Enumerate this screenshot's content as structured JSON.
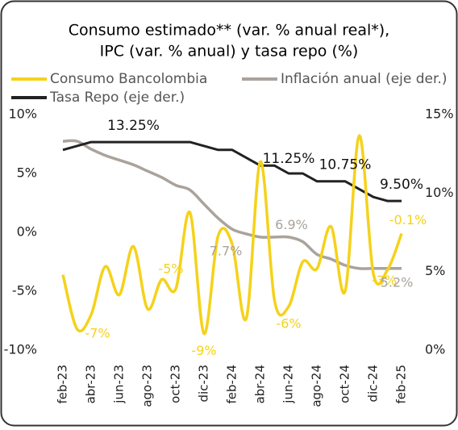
{
  "chart_data": {
    "type": "line",
    "title_lines": [
      "Consumo estimado** (var. % anual real*),",
      "IPC (var. % anual) y tasa repo (%)"
    ],
    "categories": [
      "feb-23",
      null,
      "abr-23",
      null,
      "jun-23",
      null,
      "ago-23",
      null,
      "oct-23",
      null,
      "dic-23",
      null,
      "feb-24",
      null,
      "abr-24",
      null,
      "jun-24",
      null,
      "ago-24",
      null,
      "oct-24",
      null,
      "dic-24",
      null,
      "feb-25"
    ],
    "series": [
      {
        "name": "Consumo Bancolombia",
        "color": "#f5d21a",
        "axis": "y",
        "values": [
          -3.6,
          -8.2,
          -7.0,
          -2.9,
          -5.3,
          -1.2,
          -6.5,
          -4.0,
          -4.8,
          1.7,
          -8.6,
          -0.3,
          -1.0,
          -7.3,
          6.0,
          -5.8,
          -6.3,
          -2.5,
          -3.1,
          0.5,
          -5.0,
          8.2,
          -3.5,
          -3.2,
          -0.1
        ],
        "value_labels": [
          null,
          null,
          "-7%",
          null,
          null,
          null,
          null,
          null,
          "-5%",
          null,
          "-9%",
          null,
          null,
          null,
          null,
          null,
          "-6%",
          null,
          null,
          null,
          null,
          null,
          null,
          "-3%",
          "-0.1%"
        ]
      },
      {
        "name": "Inflación anual (eje der.)",
        "color": "#aaa39b",
        "axis": "y2",
        "values": [
          13.3,
          13.3,
          12.8,
          12.4,
          12.1,
          11.8,
          11.4,
          11.0,
          10.5,
          10.2,
          9.3,
          8.4,
          7.7,
          7.4,
          7.2,
          7.2,
          7.2,
          6.9,
          6.1,
          5.8,
          5.4,
          5.2,
          5.2,
          5.2,
          5.2
        ],
        "value_labels": [
          null,
          null,
          null,
          null,
          null,
          null,
          null,
          null,
          null,
          null,
          null,
          null,
          "7.7%",
          null,
          null,
          null,
          null,
          "6.9%",
          null,
          null,
          null,
          null,
          null,
          null,
          "5.2%"
        ]
      },
      {
        "name": "Tasa Repo (eje der.)",
        "color": "#222222",
        "axis": "y2",
        "values": [
          12.75,
          13.0,
          13.25,
          13.25,
          13.25,
          13.25,
          13.25,
          13.25,
          13.25,
          13.25,
          13.0,
          12.75,
          12.75,
          12.25,
          11.75,
          11.75,
          11.25,
          11.25,
          10.75,
          10.75,
          10.75,
          10.25,
          9.75,
          9.5,
          9.5
        ],
        "value_labels": [
          null,
          null,
          null,
          null,
          null,
          "13.25%",
          null,
          null,
          null,
          null,
          null,
          null,
          null,
          null,
          null,
          null,
          "11.25%",
          null,
          null,
          null,
          "10.75%",
          null,
          null,
          null,
          "9.50%"
        ]
      }
    ],
    "ylim": [
      -10,
      10
    ],
    "yticks": [
      {
        "value": -10,
        "label": "-10%"
      },
      {
        "value": -5,
        "label": "-5%"
      },
      {
        "value": 0,
        "label": "0%"
      },
      {
        "value": 5,
        "label": "5%"
      },
      {
        "value": 10,
        "label": "10%"
      }
    ],
    "y2lim": [
      0,
      15
    ],
    "y2ticks": [
      {
        "value": 0,
        "label": "0%"
      },
      {
        "value": 5,
        "label": "5%"
      },
      {
        "value": 10,
        "label": "10%"
      },
      {
        "value": 15,
        "label": "15%"
      }
    ],
    "grid": false
  }
}
